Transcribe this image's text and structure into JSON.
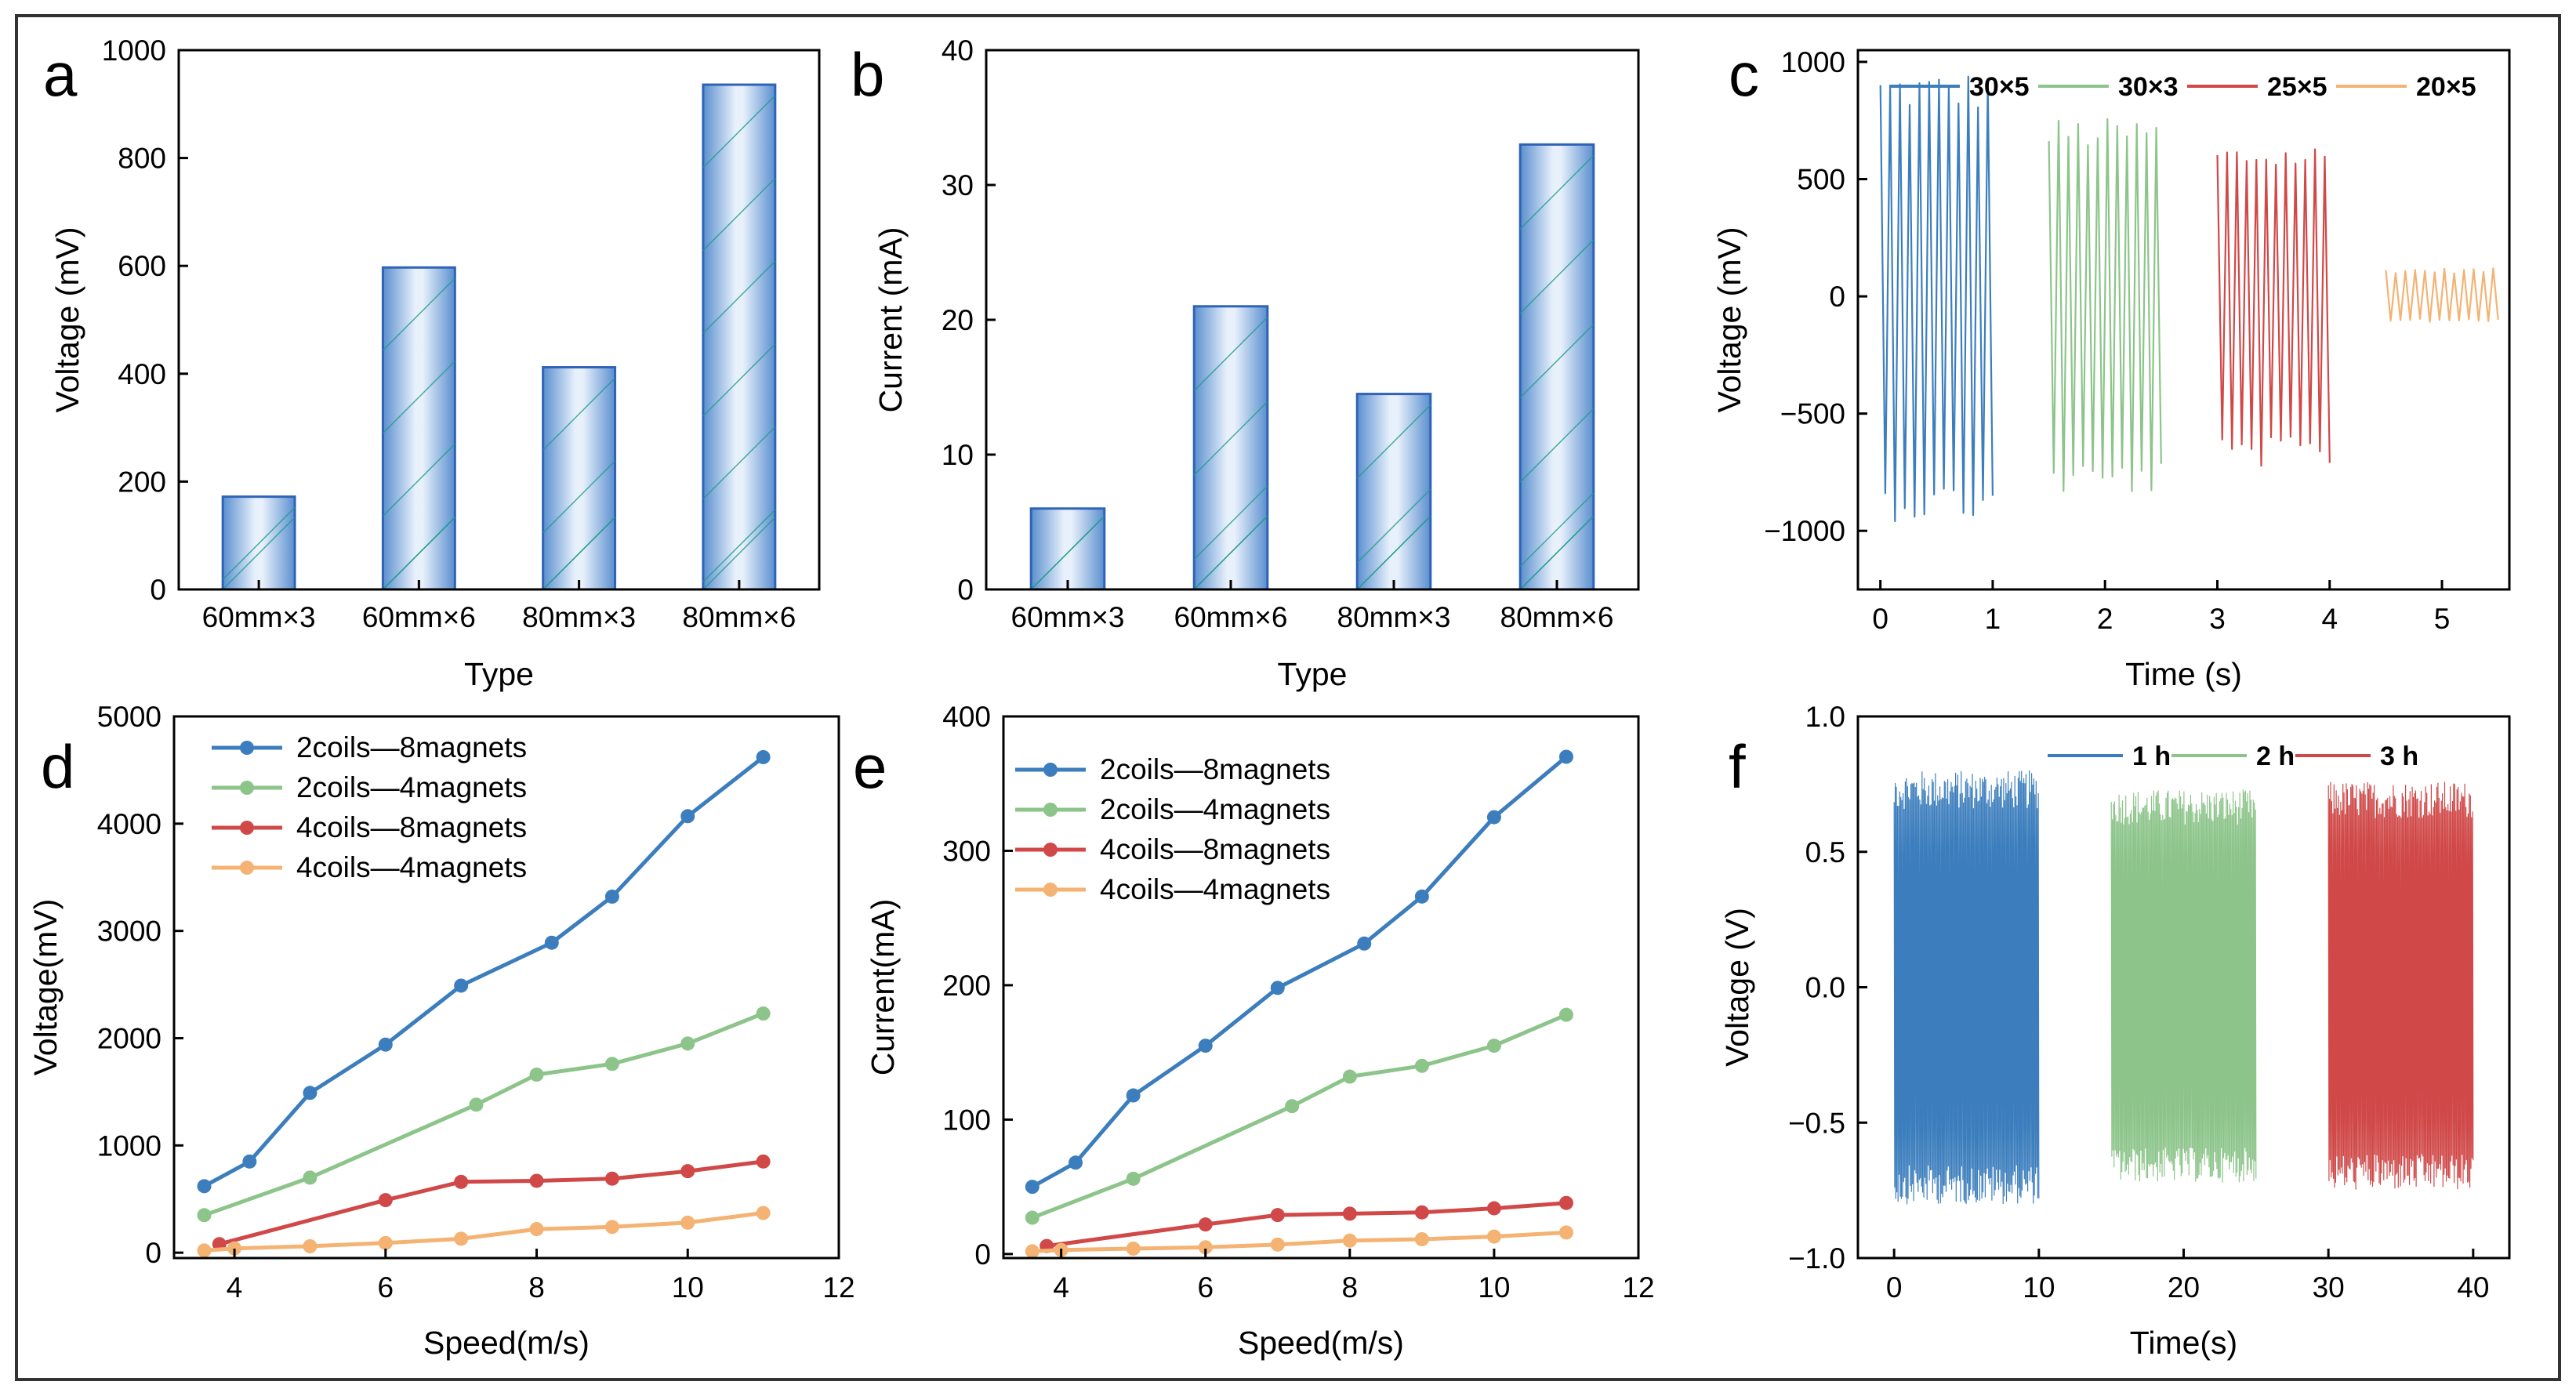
{
  "figure_border_color": "#333333",
  "colors": {
    "blue": "#3c7ebd",
    "green": "#8cc48a",
    "red": "#d04848",
    "orange": "#f4b273",
    "bar_edge": "#2f63b7",
    "bar_dark": "#5a8fcf",
    "bar_light": "#e8f1fb",
    "hatch": "#1f9a8a"
  },
  "chart_data": [
    {
      "panel": "a",
      "type": "bar",
      "categories": [
        "60mm×3",
        "60mm×6",
        "80mm×3",
        "80mm×6"
      ],
      "values": [
        172,
        597,
        412,
        936
      ],
      "xlabel": "Type",
      "ylabel": "Voltage (mV)",
      "ylim": [
        0,
        1000
      ],
      "yticks": [
        "0",
        "200",
        "400",
        "600",
        "800",
        "1000"
      ],
      "ytick_values": [
        0,
        200,
        400,
        600,
        800,
        1000
      ]
    },
    {
      "panel": "b",
      "type": "bar",
      "categories": [
        "60mm×3",
        "60mm×6",
        "80mm×3",
        "80mm×6"
      ],
      "values": [
        6,
        21,
        14.5,
        33
      ],
      "xlabel": "Type",
      "ylabel": "Current (mA)",
      "ylim": [
        0,
        40
      ],
      "yticks": [
        "0",
        "10",
        "20",
        "30",
        "40"
      ],
      "ytick_values": [
        0,
        10,
        20,
        30,
        40
      ]
    },
    {
      "panel": "c",
      "type": "line",
      "xlabel": "Time (s)",
      "ylabel": "Voltage (mV)",
      "xlim": [
        -0.2,
        5.6
      ],
      "ylim": [
        -1250,
        1050
      ],
      "xticks": [
        "0",
        "1",
        "2",
        "3",
        "4",
        "5"
      ],
      "xtick_values": [
        0,
        1,
        2,
        3,
        4,
        5
      ],
      "yticks": [
        "−1000",
        "−500",
        "0",
        "500",
        "1000"
      ],
      "ytick_values": [
        -1000,
        -500,
        0,
        500,
        1000
      ],
      "series": [
        {
          "name": "30×5",
          "t_start": 0,
          "t_end": 1.0,
          "amp_max": 960,
          "amp_min": -960,
          "color_key": "blue"
        },
        {
          "name": "30×3",
          "t_start": 1.5,
          "t_end": 2.5,
          "amp_max": 760,
          "amp_min": -850,
          "color_key": "green"
        },
        {
          "name": "25×5",
          "t_start": 3.0,
          "t_end": 4.0,
          "amp_max": 650,
          "amp_min": -730,
          "color_key": "red"
        },
        {
          "name": "20×5",
          "t_start": 4.5,
          "t_end": 5.5,
          "amp_max": 120,
          "amp_min": -110,
          "color_key": "orange"
        }
      ]
    },
    {
      "panel": "d",
      "type": "line",
      "xlabel": "Speed(m/s)",
      "ylabel": "Voltage(mV)",
      "xlim": [
        3.2,
        12
      ],
      "ylim": [
        -50,
        5000
      ],
      "xticks": [
        "4",
        "6",
        "8",
        "10",
        "12"
      ],
      "xtick_values": [
        4,
        6,
        8,
        10,
        12
      ],
      "yticks": [
        "0",
        "1000",
        "2000",
        "3000",
        "4000",
        "5000"
      ],
      "ytick_values": [
        0,
        1000,
        2000,
        3000,
        4000,
        5000
      ],
      "series": [
        {
          "name": "2coils—8magnets",
          "color_key": "blue",
          "x": [
            3.6,
            4.2,
            5,
            6,
            7,
            8.2,
            9,
            10,
            11
          ],
          "y": [
            620,
            850,
            1490,
            1940,
            2490,
            2890,
            3320,
            4070,
            4620
          ]
        },
        {
          "name": "2coils—4magnets",
          "color_key": "green",
          "x": [
            3.6,
            5,
            7.2,
            8,
            9,
            10,
            11
          ],
          "y": [
            350,
            700,
            1380,
            1660,
            1760,
            1950,
            2230
          ]
        },
        {
          "name": "4coils—8magnets",
          "color_key": "red",
          "x": [
            3.8,
            6,
            7,
            8,
            9,
            10,
            11
          ],
          "y": [
            80,
            490,
            660,
            670,
            690,
            760,
            850
          ]
        },
        {
          "name": "4coils—4magnets",
          "color_key": "orange",
          "x": [
            3.6,
            4,
            5,
            6,
            7,
            8,
            9,
            10,
            11
          ],
          "y": [
            20,
            40,
            60,
            90,
            130,
            220,
            240,
            280,
            370
          ]
        }
      ]
    },
    {
      "panel": "e",
      "type": "line",
      "xlabel": "Speed(m/s)",
      "ylabel": "Current(mA)",
      "xlim": [
        3.2,
        12
      ],
      "ylim": [
        -3,
        400
      ],
      "xticks": [
        "4",
        "6",
        "8",
        "10",
        "12"
      ],
      "xtick_values": [
        4,
        6,
        8,
        10,
        12
      ],
      "yticks": [
        "0",
        "100",
        "200",
        "300",
        "400"
      ],
      "ytick_values": [
        0,
        100,
        200,
        300,
        400
      ],
      "series": [
        {
          "name": "2coils—8magnets",
          "color_key": "blue",
          "x": [
            3.6,
            4.2,
            5,
            6,
            7,
            8.2,
            9,
            10,
            11
          ],
          "y": [
            50,
            68,
            118,
            155,
            198,
            231,
            266,
            325,
            370
          ]
        },
        {
          "name": "2coils—4magnets",
          "color_key": "green",
          "x": [
            3.6,
            5,
            7.2,
            8,
            9,
            10,
            11
          ],
          "y": [
            27,
            56,
            110,
            132,
            140,
            155,
            178
          ]
        },
        {
          "name": "4coils—8magnets",
          "color_key": "red",
          "x": [
            3.8,
            6,
            7,
            8,
            9,
            10,
            11
          ],
          "y": [
            6,
            22,
            29,
            30,
            31,
            34,
            38
          ]
        },
        {
          "name": "4coils—4magnets",
          "color_key": "orange",
          "x": [
            3.6,
            4,
            5,
            6,
            7,
            8,
            9,
            10,
            11
          ],
          "y": [
            2,
            3,
            4,
            5,
            7,
            10,
            11,
            13,
            16
          ]
        }
      ]
    },
    {
      "panel": "f",
      "type": "line",
      "xlabel": "Time(s)",
      "ylabel": "Voltage (V)",
      "xlim": [
        -2.5,
        42.5
      ],
      "ylim": [
        -1.0,
        1.0
      ],
      "xticks": [
        "0",
        "10",
        "20",
        "30",
        "40"
      ],
      "xtick_values": [
        0,
        10,
        20,
        30,
        40
      ],
      "yticks": [
        "−1.0",
        "−0.5",
        "0.0",
        "0.5",
        "1.0"
      ],
      "ytick_values": [
        -1.0,
        -0.5,
        0.0,
        0.5,
        1.0
      ],
      "series": [
        {
          "name": "1 h",
          "t_start": 0,
          "t_end": 10,
          "amp_max": 0.8,
          "amp_min": -0.8,
          "color_key": "blue"
        },
        {
          "name": "2 h",
          "t_start": 15,
          "t_end": 25,
          "amp_max": 0.73,
          "amp_min": -0.72,
          "color_key": "green"
        },
        {
          "name": "3 h",
          "t_start": 30,
          "t_end": 40,
          "amp_max": 0.76,
          "amp_min": -0.75,
          "color_key": "red"
        }
      ]
    }
  ]
}
